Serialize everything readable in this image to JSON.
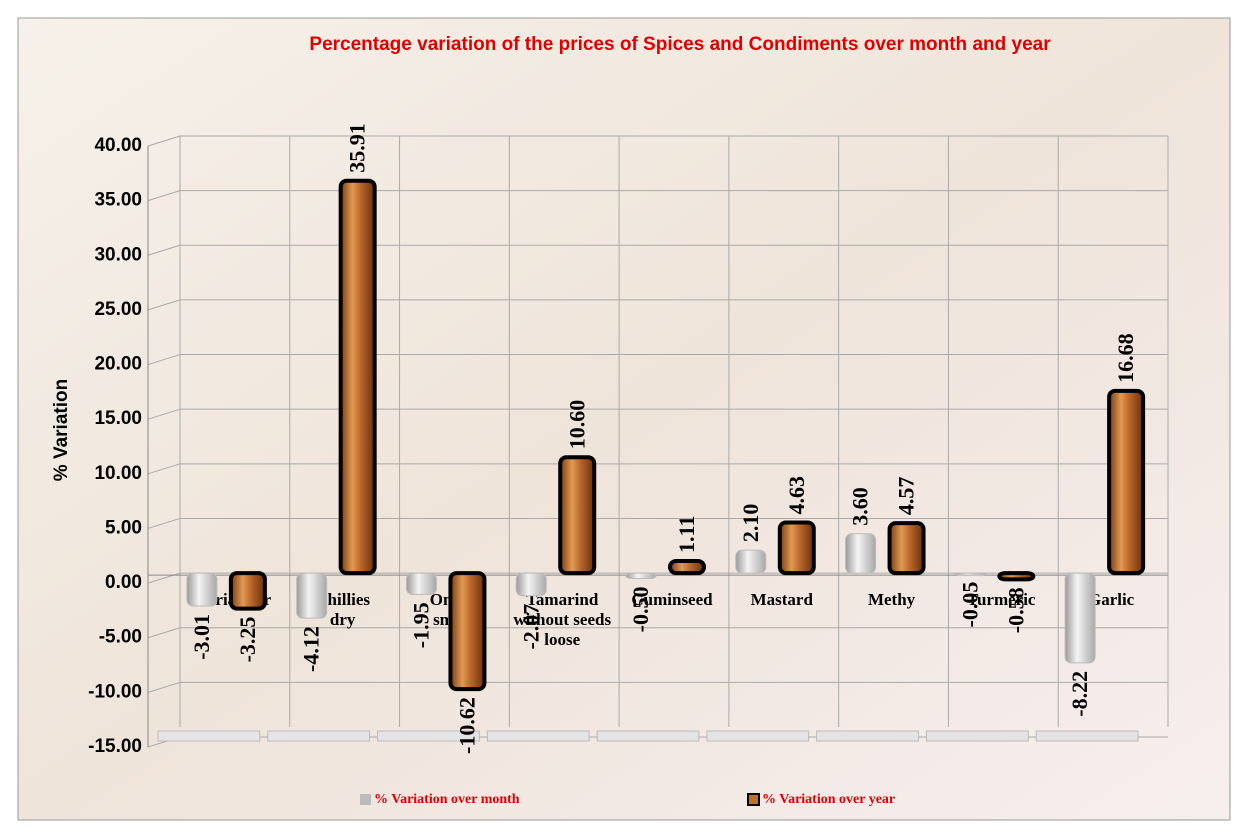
{
  "chart_data": {
    "type": "bar",
    "title": "Percentage variation of the prices of Spices and Condiments over month and year",
    "y_label": "% Variation",
    "categories": [
      "Coriandar",
      "Chillies dry",
      "Onion small",
      "Tamarind without seeds loose",
      "Cuminseed",
      "Mastard",
      "Methy",
      "Turmeric",
      "Garlic"
    ],
    "series": [
      {
        "name": "% Variation over month",
        "color": "#c8c8c8",
        "values": [
          -3.01,
          -4.12,
          -1.95,
          -2.07,
          -0.5,
          2.1,
          3.6,
          -0.05,
          -8.22
        ],
        "value_labels": [
          "-3.01",
          "-4.12",
          "-1.95",
          "-2.07",
          "-0.50",
          "2.10",
          "3.60",
          "-0.05",
          "-8.22"
        ]
      },
      {
        "name": "% Variation over year",
        "color": "#c0702a",
        "values": [
          -3.25,
          35.91,
          -10.62,
          10.6,
          1.11,
          4.63,
          4.57,
          -0.58,
          16.68
        ],
        "value_labels": [
          "-3.25",
          "35.91",
          "-10.62",
          "10.60",
          "1.11",
          "4.63",
          "4.57",
          "-0.58",
          "16.68"
        ]
      }
    ],
    "ylim": [
      -15,
      40
    ],
    "yticks": [
      {
        "value": -15,
        "label": "-15.00"
      },
      {
        "value": -10,
        "label": "-10.00"
      },
      {
        "value": -5,
        "label": "-5.00"
      },
      {
        "value": 0,
        "label": "0.00"
      },
      {
        "value": 5,
        "label": "5.00"
      },
      {
        "value": 10,
        "label": "10.00"
      },
      {
        "value": 15,
        "label": "15.00"
      },
      {
        "value": 20,
        "label": "20.00"
      },
      {
        "value": 25,
        "label": "25.00"
      },
      {
        "value": 30,
        "label": "30.00"
      },
      {
        "value": 35,
        "label": "35.00"
      },
      {
        "value": 40,
        "label": "40.00"
      }
    ],
    "grid": true,
    "legend": "bottom"
  }
}
